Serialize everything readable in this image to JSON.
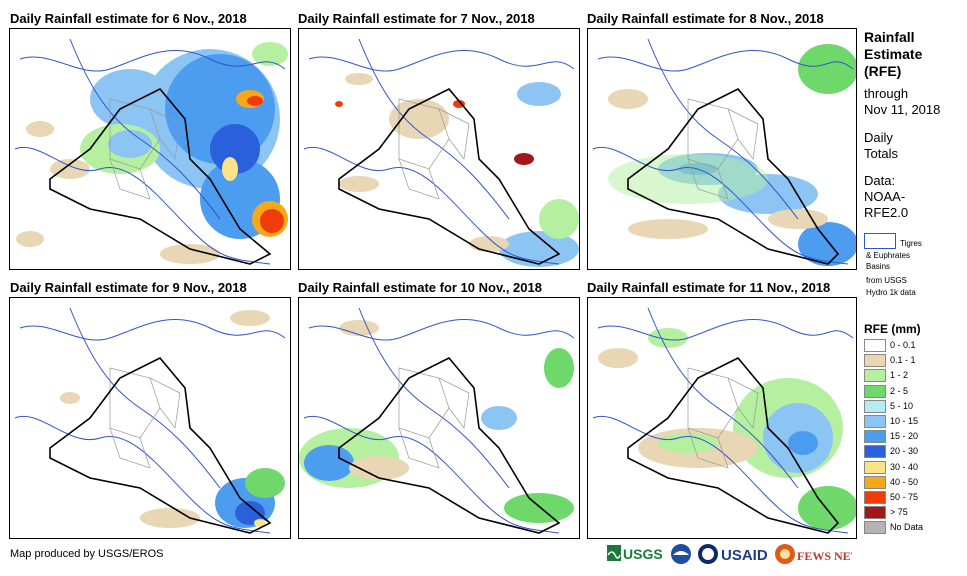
{
  "panels": [
    {
      "title": "Daily Rainfall estimate for 6 Nov., 2018"
    },
    {
      "title": "Daily Rainfall estimate for 7 Nov., 2018"
    },
    {
      "title": "Daily Rainfall estimate for 8 Nov., 2018"
    },
    {
      "title": "Daily Rainfall estimate for 9 Nov., 2018"
    },
    {
      "title": "Daily Rainfall estimate for 10 Nov., 2018"
    },
    {
      "title": "Daily Rainfall estimate for 11 Nov., 2018"
    }
  ],
  "sidebar": {
    "title_line1": "Rainfall",
    "title_line2": "Estimate",
    "title_line3": "(RFE)",
    "through_line1": "through",
    "through_line2": "Nov 11, 2018",
    "daily_line1": "Daily",
    "daily_line2": "Totals",
    "data_line1": "Data:",
    "data_line2": "NOAA-",
    "data_line3": "RFE2.0",
    "basins_line1": "Tigres",
    "basins_line2": "& Euphrates",
    "basins_line3": "Basins",
    "basins_line4": "from USGS",
    "basins_line5": "Hydro 1k data"
  },
  "legend": {
    "title": "RFE (mm)",
    "items": [
      {
        "label": "0 - 0.1",
        "color": "#ffffff"
      },
      {
        "label": "0.1 - 1",
        "color": "#e8d6b4"
      },
      {
        "label": "1 - 2",
        "color": "#b4f0a0"
      },
      {
        "label": "2 - 5",
        "color": "#6ed96a"
      },
      {
        "label": "5 - 10",
        "color": "#b4ecf4"
      },
      {
        "label": "10 - 15",
        "color": "#8cc4f4"
      },
      {
        "label": "15 - 20",
        "color": "#4c9cf0"
      },
      {
        "label": "20 - 30",
        "color": "#2a60dc"
      },
      {
        "label": "30 - 40",
        "color": "#fce38a"
      },
      {
        "label": "40 - 50",
        "color": "#f7a818"
      },
      {
        "label": "50 - 75",
        "color": "#f03c0a"
      },
      {
        "label": "> 75",
        "color": "#a01818"
      },
      {
        "label": "No Data",
        "color": "#b4b4b4"
      }
    ]
  },
  "footer": {
    "credit": "Map produced by USGS/EROS",
    "logo_usgs": "USGS",
    "logo_usaid": "USAID",
    "logo_fews": "FEWS NET"
  }
}
